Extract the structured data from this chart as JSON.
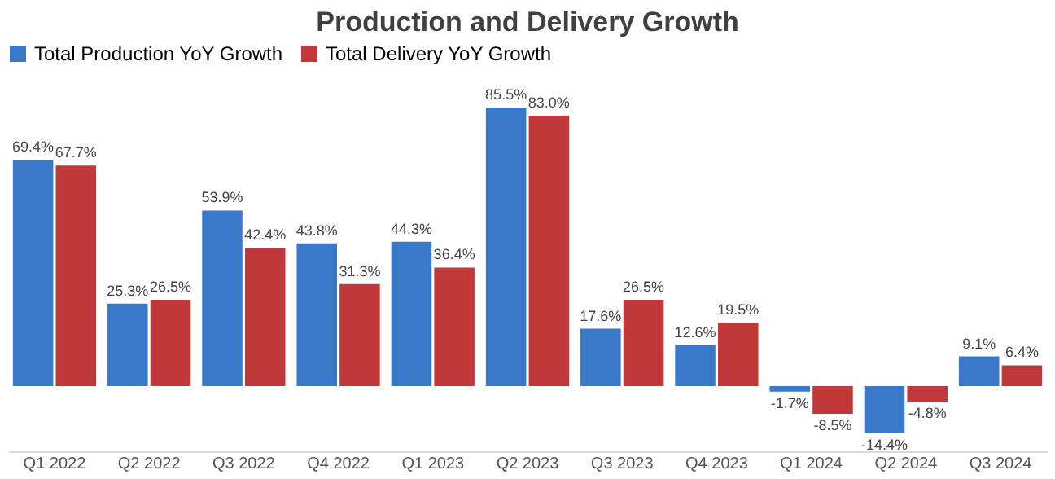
{
  "chart_data": {
    "type": "bar",
    "title": "Production and Delivery Growth",
    "categories": [
      "Q1 2022",
      "Q2 2022",
      "Q3 2022",
      "Q4 2022",
      "Q1 2023",
      "Q2 2023",
      "Q3 2023",
      "Q4 2023",
      "Q1 2024",
      "Q2 2024",
      "Q3 2024"
    ],
    "series": [
      {
        "name": "Total Production YoY Growth",
        "color": "#3a78c9",
        "values": [
          69.4,
          25.3,
          53.9,
          43.8,
          44.3,
          85.5,
          17.6,
          12.6,
          -1.7,
          -14.4,
          9.1
        ],
        "value_labels": [
          "69.4%",
          "25.3%",
          "53.9%",
          "43.8%",
          "44.3%",
          "85.5%",
          "17.6%",
          "12.6%",
          "-1.7%",
          "-14.4%",
          "9.1%"
        ]
      },
      {
        "name": "Total Delivery YoY Growth",
        "color": "#c0383a",
        "values": [
          67.7,
          26.5,
          42.4,
          31.3,
          36.4,
          83.0,
          26.5,
          19.5,
          -8.5,
          -4.8,
          6.4
        ],
        "value_labels": [
          "67.7%",
          "26.5%",
          "42.4%",
          "31.3%",
          "36.4%",
          "83.0%",
          "26.5%",
          "19.5%",
          "-8.5%",
          "-4.8%",
          "6.4%"
        ]
      }
    ],
    "legend": "top",
    "grid": false
  }
}
